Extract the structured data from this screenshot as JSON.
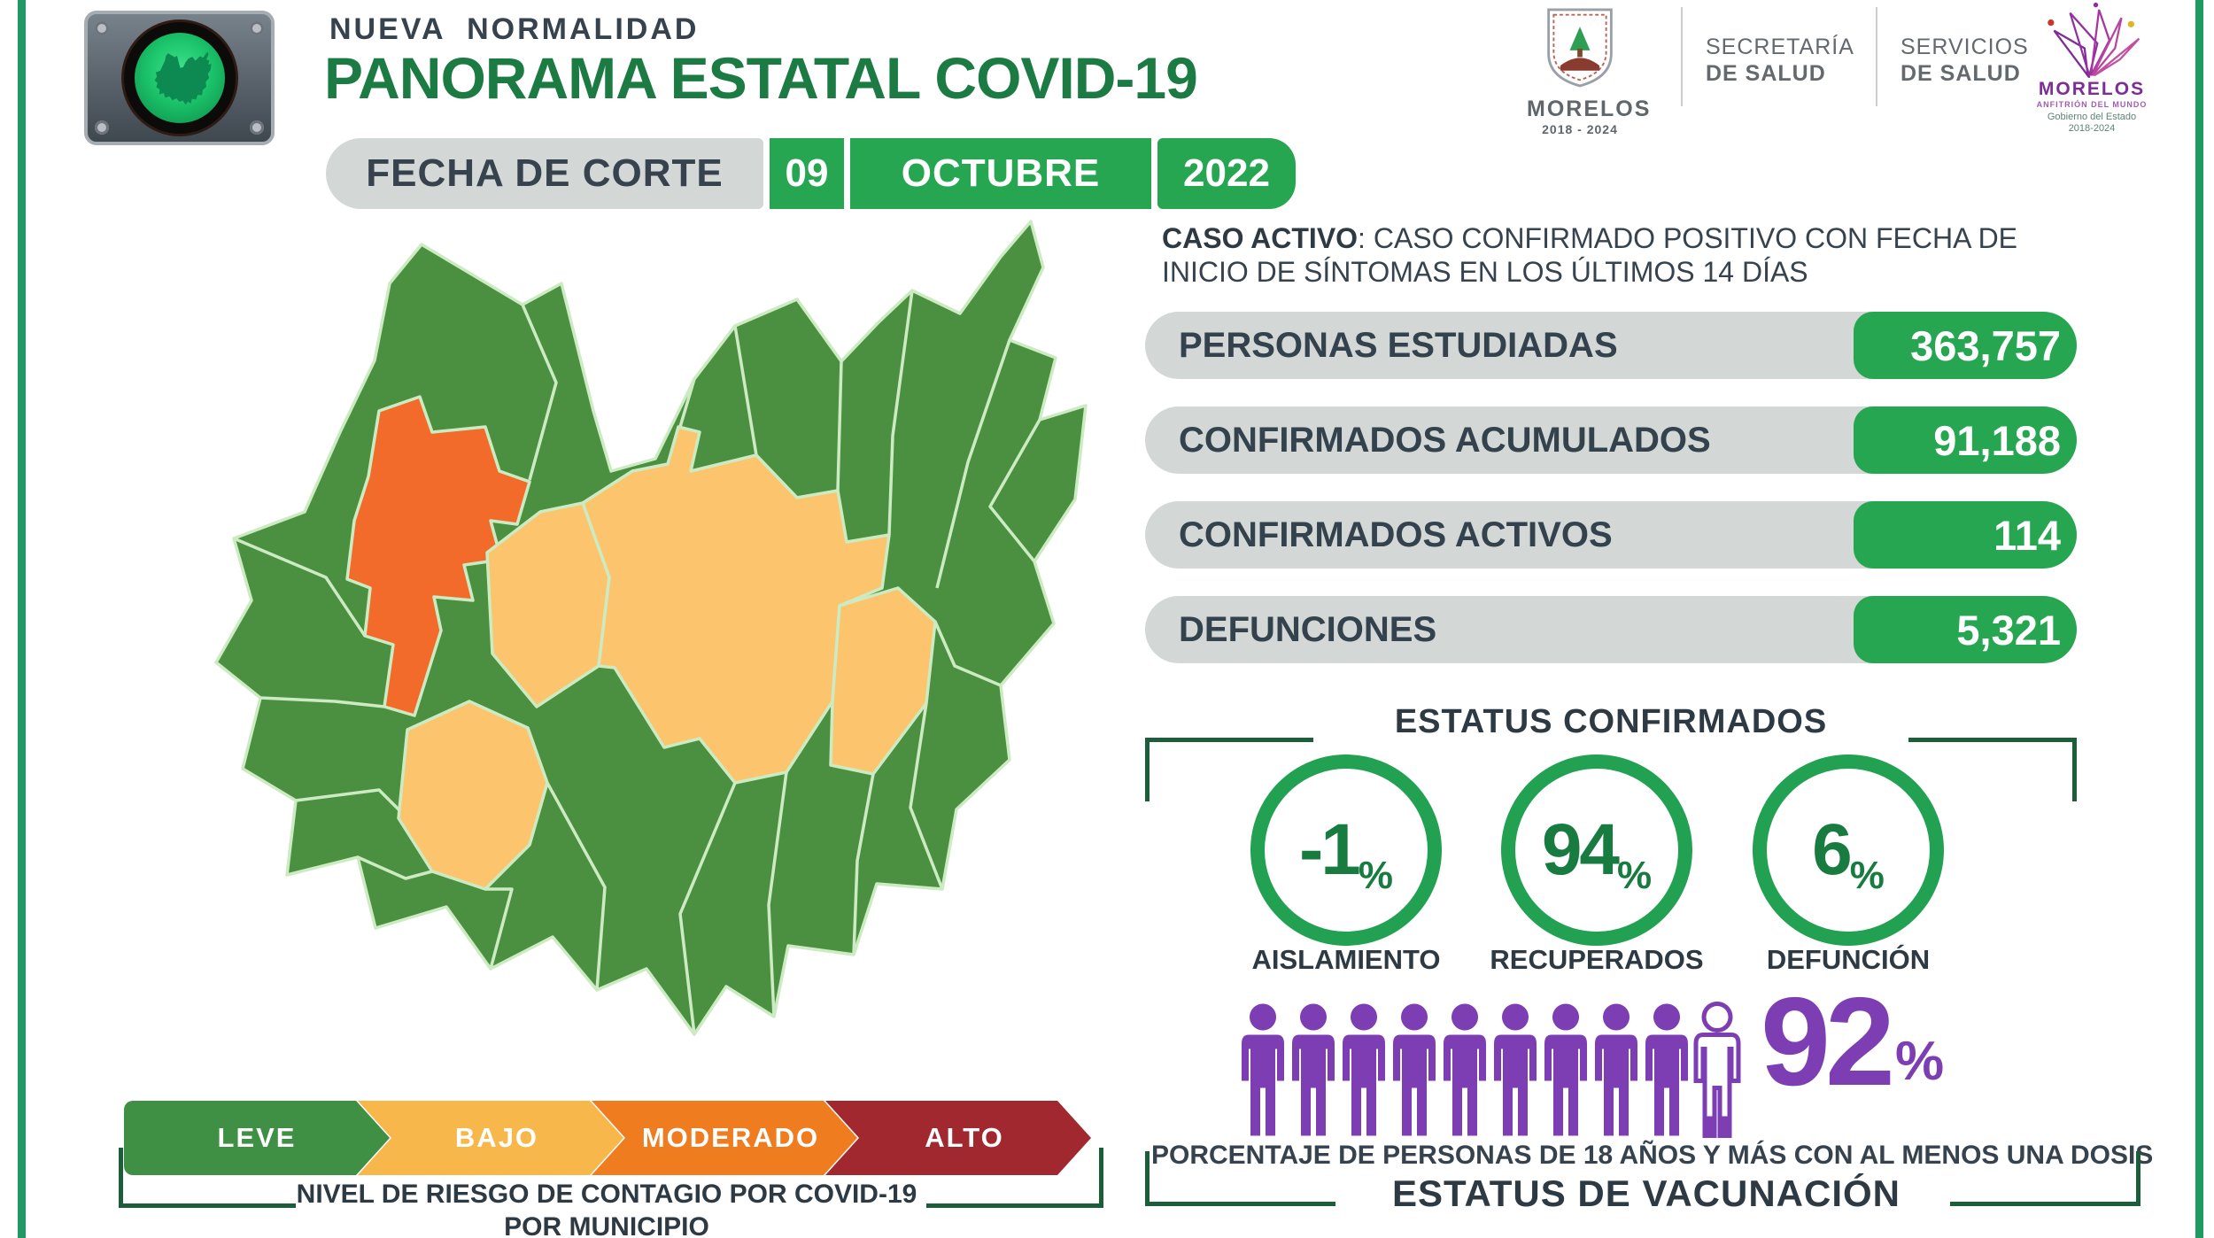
{
  "page": {
    "background": "#ffffff",
    "frame_line_color": "#1e9a63"
  },
  "header": {
    "supertitle": "NUEVA  NORMALIDAD",
    "title": "PANORAMA ESTATAL COVID-19",
    "title_color": "#1b7b43",
    "date_label": "FECHA DE CORTE",
    "date_day": "09",
    "date_month": "OCTUBRE",
    "date_year": "2022",
    "date_green": "#27a652"
  },
  "logos": {
    "shield_title": "MORELOS",
    "shield_years": "2018 - 2024",
    "secretaria_line1": "SECRETARÍA",
    "secretaria_line2": "DE SALUD",
    "servicios_line1": "SERVICIOS",
    "servicios_line2": "DE SALUD",
    "lotus_title": "MORELOS",
    "lotus_subtitle": "ANFITRIÓN DEL MUNDO",
    "lotus_caption1": "Gobierno del Estado",
    "lotus_caption2": "2018-2024"
  },
  "case_note": {
    "line1_bold": "CASO ACTIVO",
    "line1_rest": ": CASO CONFIRMADO POSITIVO CON FECHA DE",
    "line2": "INICIO DE SÍNTOMAS EN LOS ÚLTIMOS 14 DÍAS"
  },
  "stats": [
    {
      "label": "PERSONAS ESTUDIADAS",
      "value": "363,757"
    },
    {
      "label": "CONFIRMADOS ACUMULADOS",
      "value": "91,188"
    },
    {
      "label": "CONFIRMADOS ACTIVOS",
      "value": "114"
    },
    {
      "label": "DEFUNCIONES",
      "value": "5,321"
    }
  ],
  "status": {
    "title": "ESTATUS CONFIRMADOS",
    "ring_color": "#21a151",
    "number_color": "#187b40",
    "items": [
      {
        "value": "-1",
        "unit": "%",
        "label": "AISLAMIENTO"
      },
      {
        "value": "94",
        "unit": "%",
        "label": "RECUPERADOS"
      },
      {
        "value": "6",
        "unit": "%",
        "label": "DEFUNCIÓN"
      }
    ]
  },
  "vaccination": {
    "percent": "92",
    "unit": "%",
    "total_people": 10,
    "filled_people": 9,
    "partial_fill": 0.2,
    "people_color": "#7d3eb4",
    "caption": "PORCENTAJE DE PERSONAS DE 18 AÑOS Y MÁS CON AL MENOS UNA DOSIS",
    "title": "ESTATUS DE VACUNACIÓN"
  },
  "legend": {
    "items": [
      {
        "label": "LEVE",
        "color": "#3f8f44"
      },
      {
        "label": "BAJO",
        "color": "#f8b74a"
      },
      {
        "label": "MODERADO",
        "color": "#f07c20"
      },
      {
        "label": "ALTO",
        "color": "#a2282f"
      }
    ],
    "caption_part1": "NIVEL DE RIESGO DE CONTAGIO POR ",
    "caption_bold": "COVID-19",
    "caption_line2": "POR MUNICIPIO"
  },
  "map": {
    "region": "Morelos",
    "fill_leve": "#4a9040",
    "fill_bajo": "#fbc46d",
    "fill_moderado": "#f26b2b",
    "border_color": "#cdebc2",
    "risk_by_area": {
      "leve_municipios": "mayoría",
      "bajo_municipios": "centro y suroeste",
      "moderado_municipios": "noroeste"
    }
  },
  "chart_data": [
    {
      "type": "table",
      "title": "Panorama Estatal COVID-19 — Morelos — Fecha de corte 09 Octubre 2022",
      "categories": [
        "PERSONAS ESTUDIADAS",
        "CONFIRMADOS ACUMULADOS",
        "CONFIRMADOS ACTIVOS",
        "DEFUNCIONES"
      ],
      "values": [
        363757,
        91188,
        114,
        5321
      ]
    },
    {
      "type": "pie",
      "title": "ESTATUS CONFIRMADOS",
      "categories": [
        "AISLAMIENTO",
        "RECUPERADOS",
        "DEFUNCIÓN"
      ],
      "values": [
        -1,
        94,
        6
      ],
      "unit": "%"
    },
    {
      "type": "bar",
      "title": "ESTATUS DE VACUNACIÓN",
      "categories": [
        "Personas 18+ con al menos una dosis"
      ],
      "values": [
        92
      ],
      "unit": "%",
      "note": "pictograma: 9.2 de 10 figuras rellenas"
    }
  ]
}
